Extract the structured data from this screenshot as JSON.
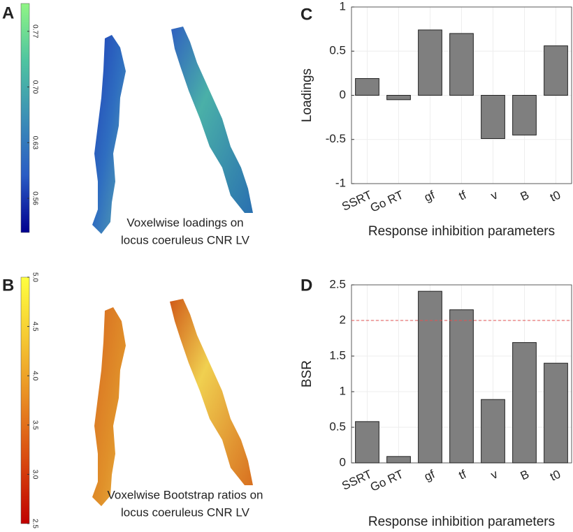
{
  "chart_data": [
    {
      "type": "colorbar",
      "panel_label": "A",
      "caption": [
        "Voxelwise loadings on",
        "locus coeruleus CNR LV"
      ],
      "colors": [
        "#00008f",
        "#2a5cc4",
        "#3c8fb6",
        "#4fc4a0",
        "#90f585"
      ],
      "ylim": [
        0.517,
        0.805
      ],
      "yticks": [
        0.56,
        0.63,
        {
          "value": 0.7,
          "label": "0.70"
        },
        0.77
      ]
    },
    {
      "type": "colorbar",
      "panel_label": "B",
      "caption": [
        "Voxelwise Bootstrap ratios on",
        "locus coeruleus CNR LV"
      ],
      "colors": [
        "#c00000",
        "#d8480f",
        "#e88a22",
        "#f5c832",
        "#ffff40"
      ],
      "ylim": [
        2.5,
        5.0
      ],
      "yticks": [
        2.5,
        {
          "value": 3,
          "label": "3.0"
        },
        3.5,
        {
          "value": 4,
          "label": "4.0"
        },
        4.5,
        {
          "value": 5,
          "label": "5.0"
        }
      ]
    },
    {
      "type": "bar",
      "panel_label": "C",
      "categories": [
        "SSRT",
        "Go RT",
        "gf",
        "tf",
        "v",
        "B",
        "t0"
      ],
      "values": [
        0.19,
        -0.05,
        0.74,
        0.7,
        -0.49,
        -0.45,
        0.56
      ],
      "color": "#7f7f7f",
      "ylim": [
        -1,
        1
      ],
      "yticks": [
        -1,
        -0.5,
        0,
        0.5,
        1
      ],
      "grid": true,
      "xlabel": "Response inhibition parameters",
      "ylabel": "Loadings"
    },
    {
      "type": "bar",
      "panel_label": "D",
      "categories": [
        "SSRT",
        "Go RT",
        "gf",
        "tf",
        "v",
        "B",
        "t0"
      ],
      "values": [
        0.58,
        0.09,
        2.41,
        2.15,
        0.89,
        1.69,
        1.4
      ],
      "color": "#7f7f7f",
      "ylim": [
        0,
        2.5
      ],
      "yticks": [
        0,
        0.5,
        1,
        1.5,
        2,
        2.5
      ],
      "grid": true,
      "reference_line": {
        "value": 2,
        "color": "#e05050"
      },
      "xlabel": "Response inhibition parameters",
      "ylabel": "BSR"
    }
  ]
}
